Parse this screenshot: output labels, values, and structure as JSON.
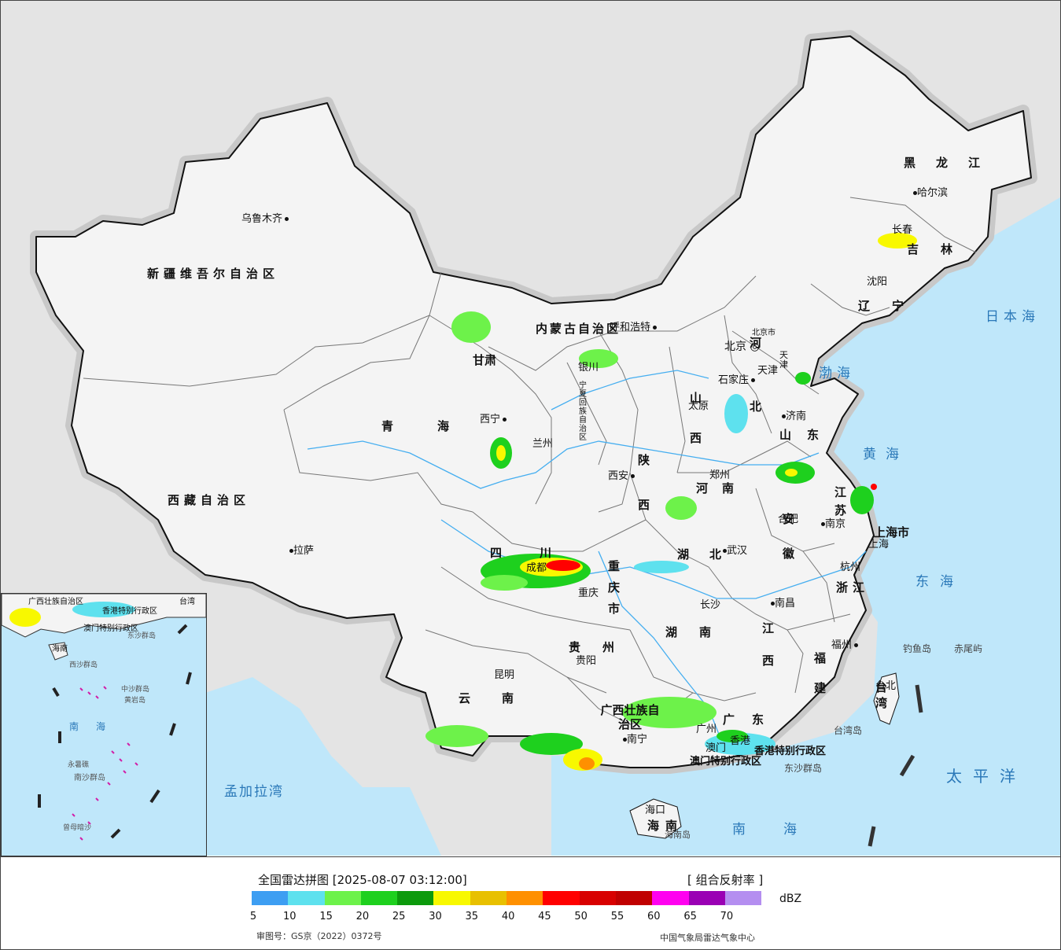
{
  "map": {
    "provinces": [
      {
        "name": "新疆维吾尔自治区"
      },
      {
        "name": "西藏自治区"
      },
      {
        "name": "青海"
      },
      {
        "name": "甘肃"
      },
      {
        "name": "内蒙古自治区"
      },
      {
        "name": "宁夏回族自治区"
      },
      {
        "name": "四川"
      },
      {
        "name": "云南"
      },
      {
        "name": "贵州"
      },
      {
        "name": "重庆市"
      },
      {
        "name": "陕西"
      },
      {
        "name": "山西"
      },
      {
        "name": "河北"
      },
      {
        "name": "河南"
      },
      {
        "name": "湖北"
      },
      {
        "name": "湖南"
      },
      {
        "name": "广西壮族自治区"
      },
      {
        "name": "广东"
      },
      {
        "name": "海南"
      },
      {
        "name": "江西"
      },
      {
        "name": "福建"
      },
      {
        "name": "浙江"
      },
      {
        "name": "安徽"
      },
      {
        "name": "江苏"
      },
      {
        "name": "山东"
      },
      {
        "name": "辽宁"
      },
      {
        "name": "吉林"
      },
      {
        "name": "黑龙江"
      },
      {
        "name": "台湾"
      },
      {
        "name": "上海市"
      },
      {
        "name": "天津"
      },
      {
        "name": "北京市"
      },
      {
        "name": "香港特别行政区"
      },
      {
        "name": "澳门特别行政区"
      }
    ],
    "cities": [
      "乌鲁木齐",
      "拉萨",
      "西宁",
      "兰州",
      "银川",
      "呼和浩特",
      "北京",
      "天津",
      "石家庄",
      "太原",
      "济南",
      "郑州",
      "西安",
      "成都",
      "重庆",
      "贵阳",
      "昆明",
      "南宁",
      "广州",
      "香港",
      "澳门",
      "海口",
      "长沙",
      "武汉",
      "南昌",
      "合肥",
      "南京",
      "上海",
      "杭州",
      "福州",
      "台北",
      "沈阳",
      "长春",
      "哈尔滨"
    ],
    "seas": [
      "日本海",
      "渤海",
      "黄海",
      "东海",
      "南海",
      "太平洋",
      "孟加拉湾"
    ],
    "islands": [
      "钓鱼岛",
      "赤尾屿",
      "台湾岛",
      "东沙群岛",
      "海南岛"
    ],
    "inset_labels": [
      "广西壮族自治区",
      "香港特别行政区",
      "澳门特别行政区",
      "台湾",
      "海南",
      "西沙群岛",
      "东沙群岛",
      "中沙群岛",
      "黄岩岛",
      "南海",
      "永暑礁",
      "南沙群岛",
      "曾母暗沙"
    ]
  },
  "legend": {
    "title": "全国雷达拼图 [2025-08-07 03:12:00]",
    "product": "[ 组合反射率 ]",
    "unit": "dBZ",
    "colors": [
      "#3d9ef2",
      "#5ee1ee",
      "#6df24a",
      "#1ed01e",
      "#0c9a0c",
      "#f8f800",
      "#e8c000",
      "#ff9000",
      "#ff0000",
      "#d80000",
      "#c00000",
      "#ff00f0",
      "#9a00b4",
      "#b48ef0"
    ],
    "ticks": [
      "5",
      "10",
      "15",
      "20",
      "25",
      "30",
      "35",
      "40",
      "45",
      "50",
      "55",
      "60",
      "65",
      "70"
    ],
    "approval": "审图号：GS京（2022）0372号",
    "agency": "中国气象局雷达气象中心"
  }
}
